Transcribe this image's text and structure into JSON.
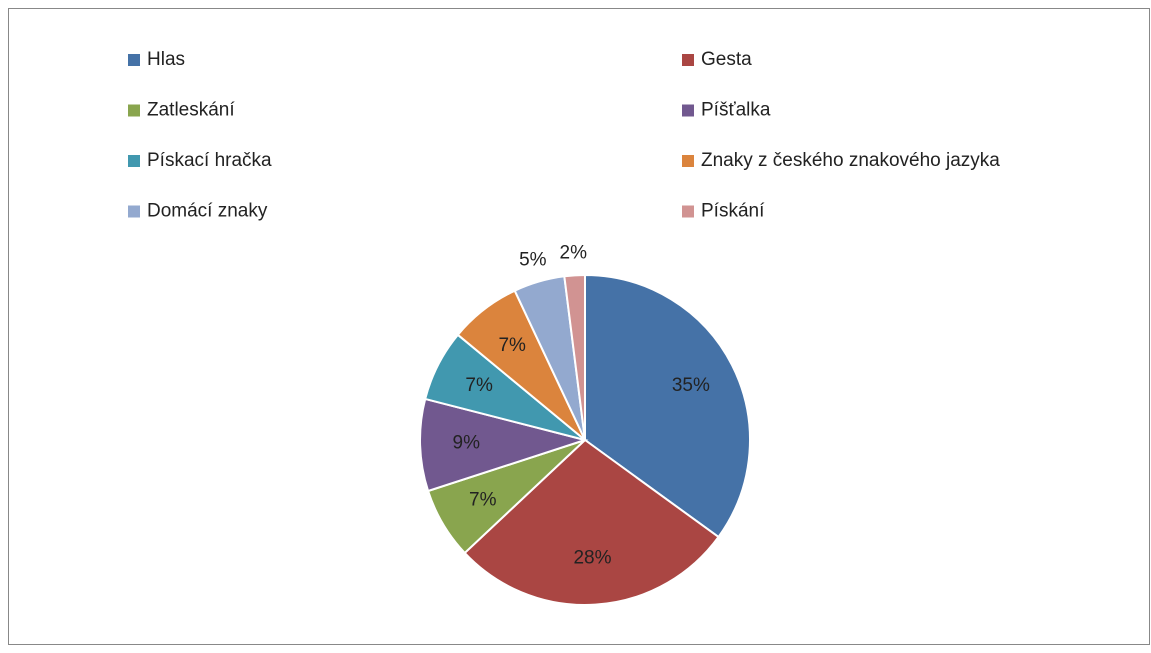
{
  "chart_data": {
    "type": "pie",
    "categories": [
      "Hlas",
      "Gesta",
      "Zatleskání",
      "Píšťalka",
      "Pískací hračka",
      "Znaky z českého znakového jazyka",
      "Domácí znaky",
      "Pískání"
    ],
    "values": [
      35,
      28,
      7,
      9,
      7,
      7,
      5,
      2
    ],
    "value_labels": [
      "35%",
      "28%",
      "7%",
      "9%",
      "7%",
      "7%",
      "5%",
      "2%"
    ],
    "colors": [
      "#4572a7",
      "#aa4643",
      "#89a54e",
      "#71588f",
      "#4198af",
      "#db843d",
      "#93a9cf",
      "#d19392"
    ],
    "legend": "top"
  }
}
